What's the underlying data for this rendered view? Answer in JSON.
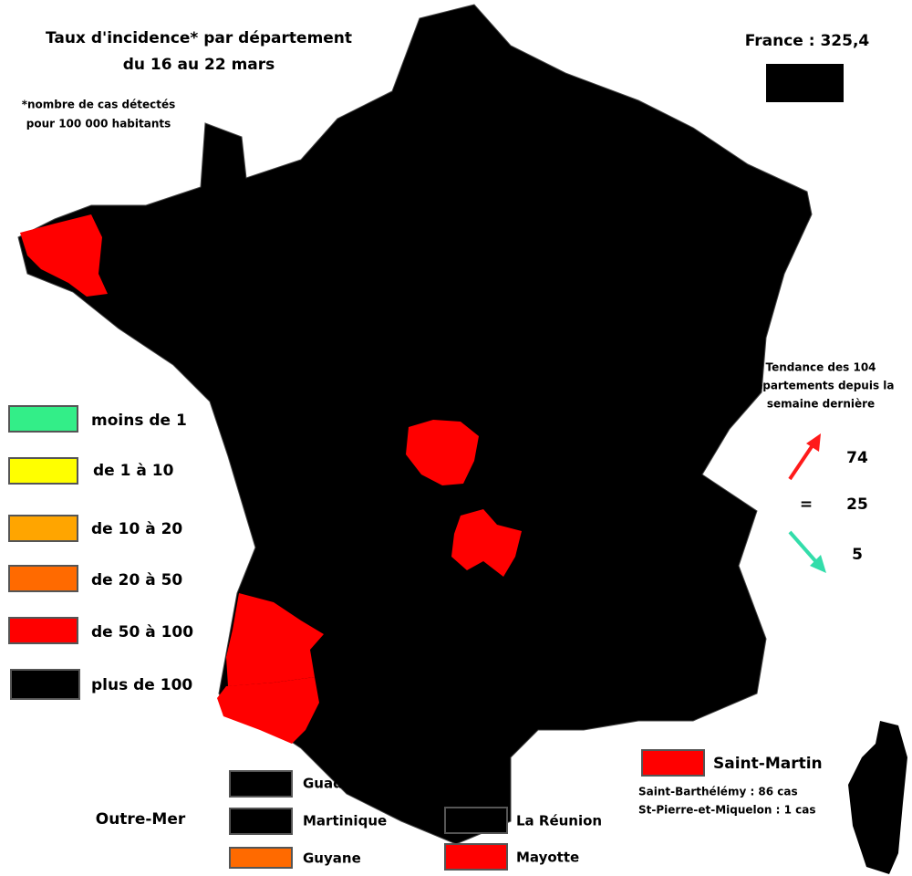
{
  "header": {
    "title": "Taux d'incidence* par département",
    "subtitle": "du 16 au 22 mars",
    "footnote": [
      "*nombre de cas détectés",
      "pour 100 000 habitants"
    ]
  },
  "national": {
    "label": "France : 325,4",
    "color": "#000000"
  },
  "map": {
    "base_color": "#000000",
    "highlight_color": "#ff0000",
    "border_color": "#444444"
  },
  "legend": {
    "items": [
      {
        "label": "moins de 1",
        "color": "#33ee88"
      },
      {
        "label": "de 1 à 10",
        "color": "#ffff00"
      },
      {
        "label": "de 10 à 20",
        "color": "#ffa500"
      },
      {
        "label": "de 20 à 50",
        "color": "#ff6a00"
      },
      {
        "label": "de 50 à 100",
        "color": "#ff0000"
      },
      {
        "label": "plus de 100",
        "color": "#000000"
      }
    ]
  },
  "trend": {
    "title": [
      "Tendance des 104",
      "départements depuis la",
      "semaine dernière"
    ],
    "up": {
      "value": 74,
      "color": "#ff1a1a"
    },
    "equal": {
      "symbol": "=",
      "value": 25
    },
    "down": {
      "value": 5,
      "color": "#33ddaa"
    }
  },
  "overseas": {
    "title": "Outre-Mer",
    "territories": [
      {
        "name": "Guadeloupe",
        "color": "#000000"
      },
      {
        "name": "Martinique",
        "color": "#000000"
      },
      {
        "name": "Guyane",
        "color": "#ff6a00"
      },
      {
        "name": "La Réunion",
        "color": "#000000"
      },
      {
        "name": "Mayotte",
        "color": "#ff0000"
      },
      {
        "name": "Saint-Martin",
        "color": "#ff0000"
      }
    ],
    "notes": [
      "Saint-Barthélémy : 86 cas",
      "St-Pierre-et-Miquelon : 1 cas"
    ]
  }
}
